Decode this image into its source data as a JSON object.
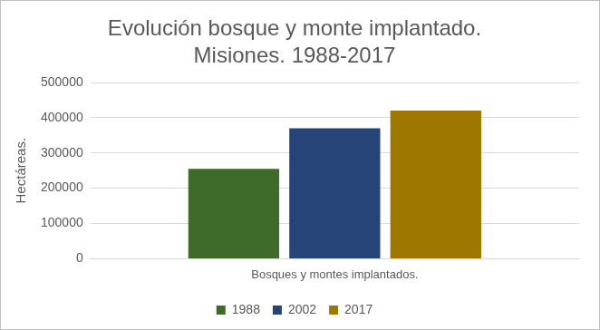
{
  "chart_data": {
    "type": "bar",
    "title": [
      "Evolución bosque y monte implantado.",
      "Misiones. 1988-2017"
    ],
    "y_label": "Hectáreas.",
    "categories": [
      "Bosques y montes implantados."
    ],
    "series": [
      {
        "name": "1988",
        "color": "#3e6b2a",
        "values": [
          255000
        ]
      },
      {
        "name": "2002",
        "color": "#264478",
        "values": [
          370000
        ]
      },
      {
        "name": "2017",
        "color": "#9e7700",
        "values": [
          420000
        ]
      }
    ],
    "ylim": [
      0,
      500000
    ],
    "yticks": [
      0,
      100000,
      200000,
      300000,
      400000,
      500000
    ],
    "grid": true,
    "legend": "bottom"
  }
}
